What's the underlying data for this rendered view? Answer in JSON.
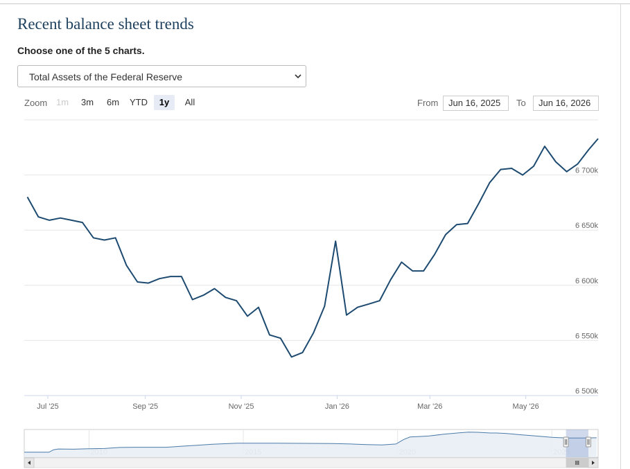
{
  "header": {
    "title": "Recent balance sheet trends",
    "subtitle": "Choose one of the 5 charts."
  },
  "chart_select": {
    "selected": "Total Assets of the Federal Reserve"
  },
  "zoom": {
    "label": "Zoom",
    "buttons": [
      {
        "label": "1m",
        "state": "disabled"
      },
      {
        "label": "3m",
        "state": "normal"
      },
      {
        "label": "6m",
        "state": "normal"
      },
      {
        "label": "YTD",
        "state": "normal"
      },
      {
        "label": "1y",
        "state": "active"
      },
      {
        "label": "All",
        "state": "normal"
      }
    ]
  },
  "range": {
    "from_label": "From",
    "from_value": "Jun 16, 2025",
    "to_label": "To",
    "to_value": "Jun 16, 2026"
  },
  "colors": {
    "line": "#1d4a70",
    "navigator_fill": "#e8eef5",
    "navigator_mask": "rgba(102,133,194,0.3)",
    "grid": "#e6e6e6"
  },
  "chart_data": {
    "type": "line",
    "title": "",
    "xlabel": "",
    "ylabel": "",
    "x_ticks": [
      "Jul '25",
      "Sep '25",
      "Nov '25",
      "Jan '26",
      "Mar '26",
      "May '26"
    ],
    "y_ticks": [
      "6 500k",
      "6 550k",
      "6 600k",
      "6 650k",
      "6 700k"
    ],
    "ylim": [
      6500000,
      6750000
    ],
    "x_range": [
      "2025-06-16",
      "2026-06-16"
    ],
    "grid": true,
    "series": [
      {
        "x": [
          "2025-06-18",
          "2025-06-25",
          "2025-07-02",
          "2025-07-09",
          "2025-07-16",
          "2025-07-23",
          "2025-07-30",
          "2025-08-06",
          "2025-08-13",
          "2025-08-20",
          "2025-08-27",
          "2025-09-03",
          "2025-09-10",
          "2025-09-17",
          "2025-09-24",
          "2025-10-01",
          "2025-10-08",
          "2025-10-15",
          "2025-10-22",
          "2025-10-29",
          "2025-11-05",
          "2025-11-12",
          "2025-11-19",
          "2025-11-26",
          "2025-12-03",
          "2025-12-10",
          "2025-12-17",
          "2025-12-24",
          "2025-12-31",
          "2026-01-07",
          "2026-01-14",
          "2026-01-21",
          "2026-01-28",
          "2026-02-04",
          "2026-02-11",
          "2026-02-18",
          "2026-02-25",
          "2026-03-04",
          "2026-03-11",
          "2026-03-18",
          "2026-03-25",
          "2026-04-01",
          "2026-04-08",
          "2026-04-15",
          "2026-04-22",
          "2026-04-29",
          "2026-05-06",
          "2026-05-13",
          "2026-05-20",
          "2026-05-27",
          "2026-06-03",
          "2026-06-10",
          "2026-06-16"
        ],
        "values": [
          6680000,
          6662000,
          6659000,
          6661000,
          6659000,
          6657000,
          6643000,
          6641000,
          6643000,
          6618000,
          6603000,
          6602000,
          6606000,
          6608000,
          6608000,
          6587000,
          6591000,
          6597000,
          6589000,
          6586000,
          6572000,
          6580000,
          6555000,
          6552000,
          6535000,
          6539000,
          6557000,
          6581000,
          6640000,
          6573000,
          6580000,
          6583000,
          6586000,
          6605000,
          6621000,
          6613000,
          6613000,
          6628000,
          6646000,
          6655000,
          6656000,
          6674000,
          6693000,
          6705000,
          6706000,
          6700000,
          6708000,
          6726000,
          6712000,
          6703000,
          6710000,
          6723000,
          6733000
        ]
      }
    ],
    "navigator": {
      "x_ticks": [
        "2010",
        "2015",
        "2020",
        "2025"
      ],
      "range": [
        2007.9,
        2026.5
      ],
      "selected": [
        "2025-06-16",
        "2026-06-16"
      ],
      "series": {
        "x": [
          2007.9,
          2008.5,
          2008.7,
          2008.85,
          2009.0,
          2009.5,
          2010.0,
          2010.5,
          2011.0,
          2011.5,
          2012.0,
          2012.5,
          2013.0,
          2013.5,
          2014.0,
          2014.8,
          2015.5,
          2016.0,
          2017.0,
          2017.9,
          2018.5,
          2019.0,
          2019.5,
          2019.7,
          2019.95,
          2020.2,
          2020.4,
          2020.7,
          2021.0,
          2021.5,
          2022.0,
          2022.3,
          2022.6,
          2023.0,
          2023.2,
          2023.5,
          2024.0,
          2024.5,
          2025.0,
          2025.5,
          2026.0,
          2026.45
        ],
        "values": [
          0.9,
          0.9,
          0.9,
          1.9,
          2.2,
          2.1,
          2.3,
          2.4,
          2.8,
          2.9,
          2.9,
          2.9,
          3.3,
          3.7,
          4.1,
          4.5,
          4.5,
          4.5,
          4.45,
          4.4,
          4.2,
          3.95,
          3.8,
          4.0,
          4.2,
          6.0,
          7.0,
          7.2,
          7.4,
          8.1,
          8.7,
          8.95,
          8.9,
          8.6,
          8.6,
          8.45,
          7.9,
          7.4,
          6.9,
          6.6,
          6.6,
          6.7
        ]
      }
    }
  }
}
